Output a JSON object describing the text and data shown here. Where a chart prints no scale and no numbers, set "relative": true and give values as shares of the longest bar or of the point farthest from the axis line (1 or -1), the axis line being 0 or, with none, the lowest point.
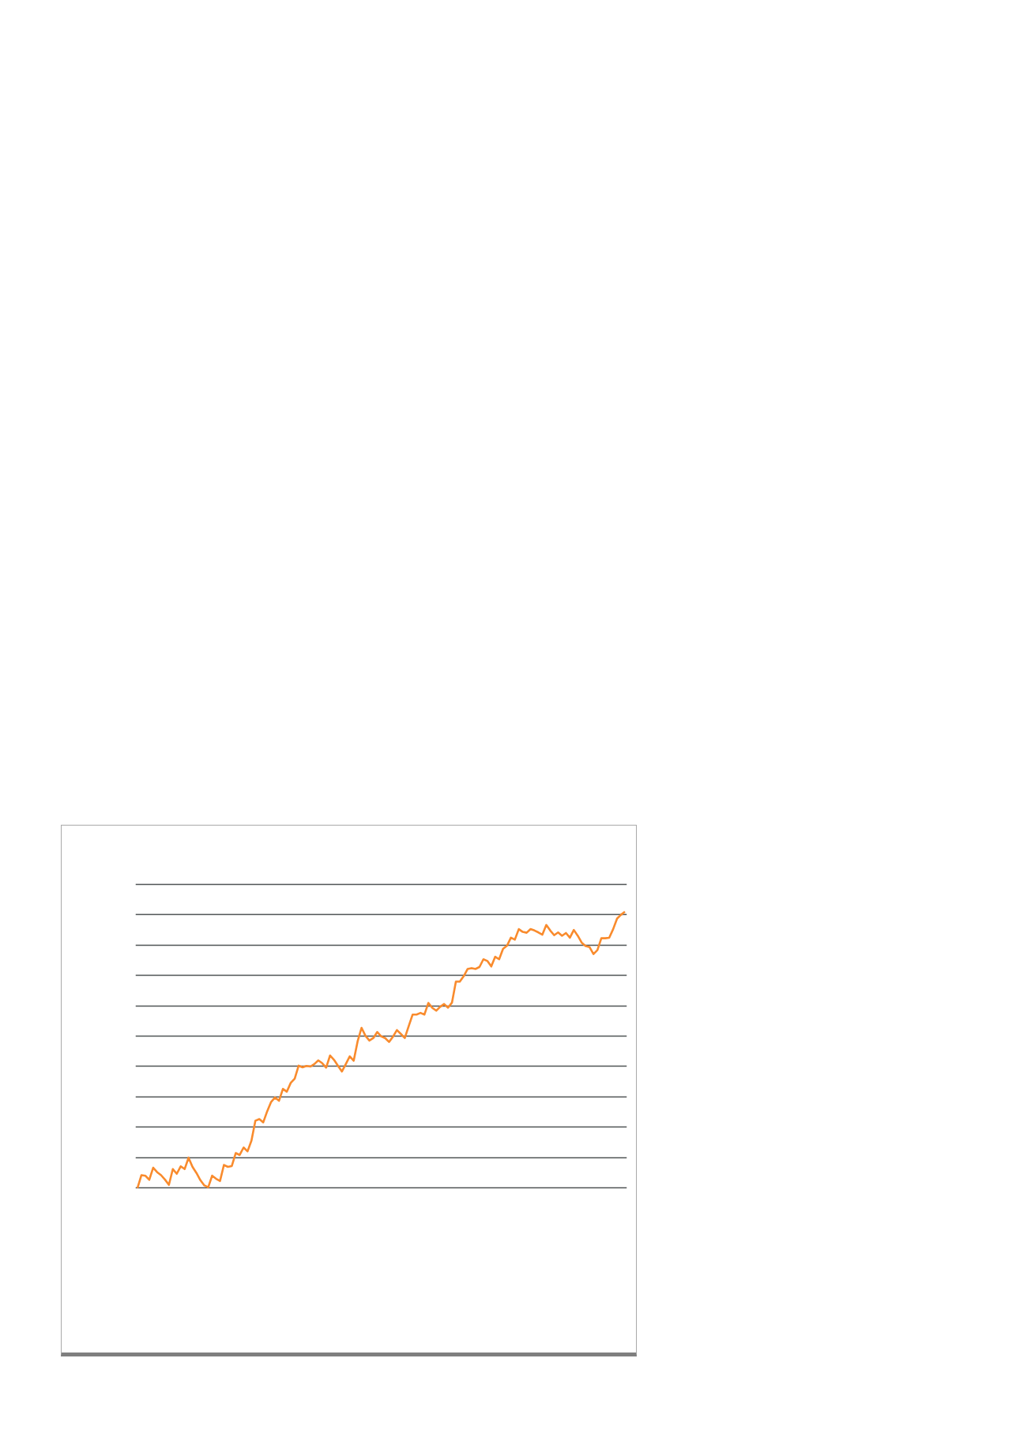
{
  "chart_data": {
    "type": "line",
    "relative": true,
    "categories": [
      null,
      null,
      null,
      null,
      null,
      null,
      null,
      null,
      null,
      null,
      null,
      null,
      null,
      null,
      null,
      null,
      null,
      null,
      null,
      null,
      null,
      null,
      null,
      null,
      null,
      null,
      null,
      null,
      null,
      null,
      null,
      null,
      null,
      null,
      null,
      null,
      null,
      null,
      null,
      null,
      null,
      null,
      null,
      null,
      null,
      null,
      null,
      null,
      null,
      null,
      null,
      null,
      null,
      null,
      null,
      null,
      null,
      null,
      null,
      null,
      null,
      null,
      null,
      null,
      null,
      null,
      null,
      null,
      null,
      null,
      null,
      null,
      null,
      null,
      null,
      null,
      null,
      null,
      null,
      null,
      null,
      null,
      null,
      null,
      null,
      null,
      null,
      null,
      null,
      null,
      null,
      null,
      null,
      null,
      null,
      null,
      null,
      null,
      null,
      null,
      null,
      null,
      null,
      null,
      null,
      null,
      null,
      null,
      null,
      null,
      null,
      null,
      null,
      null,
      null,
      null,
      null,
      null,
      null,
      null,
      null,
      null,
      null,
      null,
      null
    ],
    "series": [
      {
        "color": "#f98b2d",
        "values": [
          0,
          0.047,
          0.045,
          0.03,
          0.074,
          0.058,
          0.047,
          0.031,
          0.012,
          0.069,
          0.052,
          0.079,
          0.069,
          0.11,
          0.077,
          0.055,
          0.029,
          0.01,
          0.003,
          0.045,
          0.034,
          0.026,
          0.084,
          0.077,
          0.08,
          0.127,
          0.12,
          0.147,
          0.133,
          0.172,
          0.244,
          0.25,
          0.238,
          0.278,
          0.312,
          0.328,
          0.316,
          0.359,
          0.349,
          0.381,
          0.396,
          0.443,
          0.437,
          0.442,
          0.44,
          0.449,
          0.462,
          0.452,
          0.436,
          0.48,
          0.464,
          0.443,
          0.422,
          0.449,
          0.477,
          0.461,
          0.531,
          0.58,
          0.551,
          0.534,
          0.543,
          0.565,
          0.549,
          0.543,
          0.529,
          0.548,
          0.572,
          0.558,
          0.543,
          0.586,
          0.628,
          0.628,
          0.634,
          0.628,
          0.67,
          0.652,
          0.642,
          0.656,
          0.666,
          0.653,
          0.671,
          0.747,
          0.747,
          0.767,
          0.793,
          0.796,
          0.793,
          0.8,
          0.828,
          0.822,
          0.802,
          0.837,
          0.828,
          0.866,
          0.877,
          0.906,
          0.899,
          0.937,
          0.927,
          0.924,
          0.937,
          0.932,
          0.925,
          0.917,
          0.952,
          0.932,
          0.915,
          0.925,
          0.913,
          0.923,
          0.906,
          0.934,
          0.913,
          0.888,
          0.876,
          0.872,
          0.847,
          0.861,
          0.904,
          0.904,
          0.906,
          0.937,
          0.975,
          0.989,
          1.0
        ]
      }
    ],
    "grid": "y",
    "tick_labels": false,
    "marker": "none",
    "line_style": "solid"
  }
}
